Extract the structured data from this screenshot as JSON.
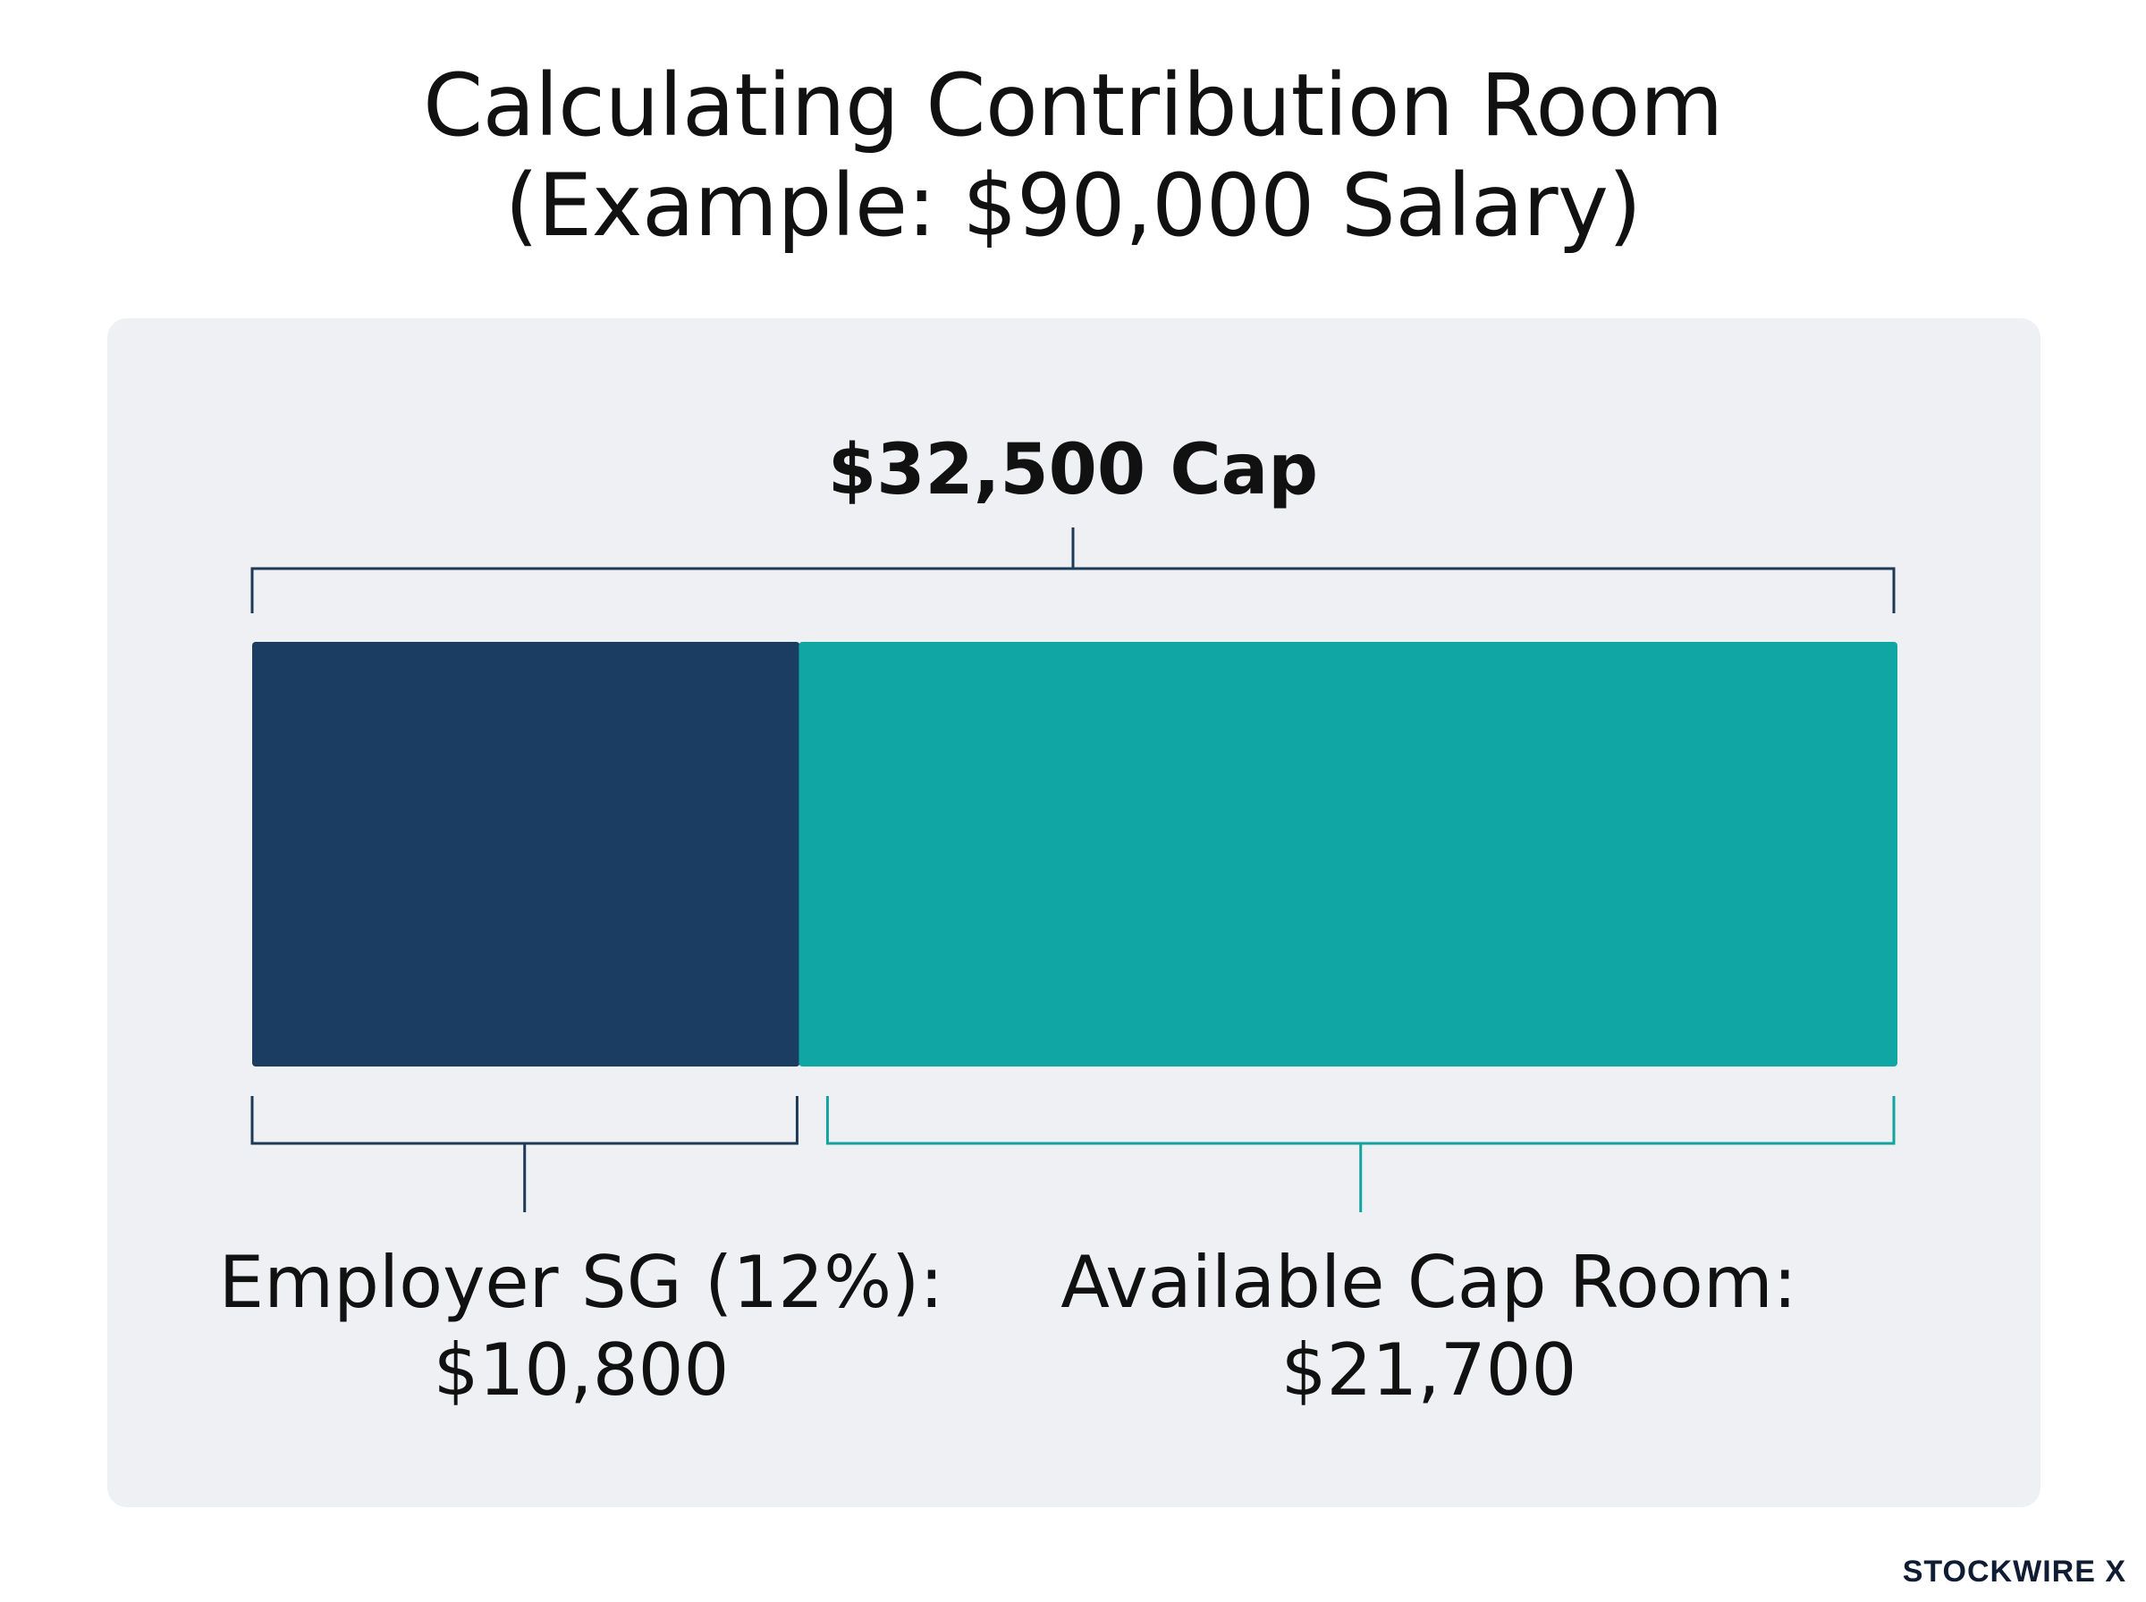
{
  "header": {
    "title_line1": "Calculating Contribution Room",
    "title_line2": "(Example: $90,000 Salary)"
  },
  "chart_data": {
    "type": "bar",
    "orientation": "horizontal",
    "stacked": true,
    "total": 32500,
    "total_label": "$32,500 Cap",
    "series": [
      {
        "name": "Employer SG (12%)",
        "value": 10800,
        "label_line1": "Employer SG (12%):",
        "label_line2": "$10,800",
        "color": "#1b3d61"
      },
      {
        "name": "Available Cap Room",
        "value": 21700,
        "label_line1": "Available Cap Room:",
        "label_line2": "$21,700",
        "color": "#10a6a3"
      }
    ],
    "bracket_colors": {
      "total": "#1c3a57",
      "segment_1": "#1c3a57",
      "segment_2": "#14a39e"
    }
  },
  "footer": {
    "brand": "STOCKWIRE X"
  }
}
